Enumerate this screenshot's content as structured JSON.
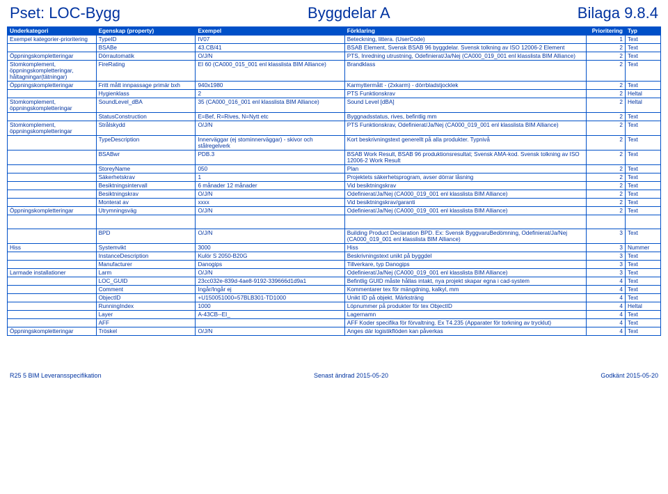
{
  "title": {
    "left": "Pset: LOC-Bygg",
    "center": "Byggdelar A",
    "right": "Bilaga 9.8.4"
  },
  "headers": [
    "Underkategori",
    "Egenskap (property)",
    "Exempel",
    "Förklaring",
    "Prioritering",
    "Typ"
  ],
  "rows": [
    [
      "Exempel kategorier-prioritering",
      "TypeID",
      "IV07",
      "Beteckning, littera. (UserCode)",
      "1",
      "Text"
    ],
    [
      "",
      "BSABe",
      "43.CB/41",
      "BSAB Element, Svensk BSAB 96 byggdelar. Svensk tolkning av ISO 12006-2 Element",
      "2",
      "Text"
    ],
    [
      "Öppningskompletteringar",
      "Dörrautomatik",
      "O/J/N",
      "PTS, Inredning utrustning, Odefinierat/Ja/Nej (CA000_019_001 enl klasslista BIM Alliance)",
      "2",
      "Text"
    ],
    [
      "Stomkomplement, öppningskompletteringar, håltagningar(tätningar)",
      "FireRating",
      "EI 60 (CA000_015_001 enl klasslista BIM Alliance)",
      "Brandklass",
      "2",
      "Text"
    ],
    [
      "Öppningskompletteringar",
      "Fritt mått innpassage primär bxh",
      "940x1980",
      "Karmyttermått - (2xkarm) - dörrbladstjocklek",
      "2",
      "Text"
    ],
    [
      "",
      "Hygienklass",
      "2",
      "PTS Funktionskrav",
      "2",
      "Heltal"
    ],
    [
      "Stomkomplement, öppningskompletteringar",
      "SoundLevel_dBA",
      "35 (CA000_016_001 enl klasslista BIM Alliance)",
      "Sound Level [dBA]",
      "2",
      "Heltal"
    ],
    [
      "",
      "StatusConstruction",
      "E=Bef, R=Rives, N=Nytt etc",
      "Byggnadsstatus, rives, befintlig mm",
      "2",
      "Text"
    ],
    [
      "Stomkomplement, öppningskompletteringar",
      "Strålskydd",
      "O/J/N",
      "PTS Funktionskrav, Odefinierat/Ja/Nej (CA000_019_001 enl klasslista BIM Alliance)",
      "2",
      "Text"
    ],
    [
      "",
      "TypeDescription",
      "Innerväggar (ej stominnerväggar) - skivor och stålregelverk",
      "Kort beskrivningstext generellt på alla produkter. Typnivå",
      "2",
      "Text"
    ],
    [
      "",
      "BSABwr",
      "PDB.3",
      "BSAB Work Result, BSAB 96 produktionsresultat; Svensk AMA-kod. Svensk tolkning av ISO 12006-2 Work Result",
      "2",
      "Text"
    ],
    [
      "",
      "StoreyName",
      "050",
      "Plan",
      "2",
      "Text"
    ],
    [
      "",
      "Säkerhetskrav",
      "1",
      "Projektets säkerhetsprogram, avser dörrar låsning",
      "2",
      "Text"
    ],
    [
      "",
      "Besiktningsintervall",
      "6 månader 12 månader",
      "Vid besiktningskrav",
      "2",
      "Text"
    ],
    [
      "",
      "Besiktningskrav",
      "O/J/N",
      "Odefinierat/Ja/Nej (CA000_019_001 enl klasslista BIM Alliance)",
      "2",
      "Text"
    ],
    [
      "",
      "Monterat av",
      "xxxx",
      "Vid besiktningskrav/garanti",
      "2",
      "Text"
    ],
    [
      "Öppningskompletteringar",
      "Utrymningsväg",
      "O/J/N",
      "Odefinierat/Ja/Nej (CA000_019_001 enl klasslista BIM Alliance)",
      "2",
      "Text"
    ],
    [
      "SPACER"
    ],
    [
      "",
      "BPD",
      "O/J/N",
      "Building Product Declaration BPD. Ex: Svensk ByggvaruBedömning, Odefinierat/Ja/Nej (CA000_019_001 enl klasslista BIM Alliance)",
      "3",
      "Text"
    ],
    [
      "Hiss",
      "Systemvikt",
      "3000",
      "Hiss",
      "3",
      "Nummer"
    ],
    [
      "",
      "InstanceDescription",
      "Kulör S 2050-B20G",
      "Beskrivningstext unikt på byggdel",
      "3",
      "Text"
    ],
    [
      "",
      "Manufacturer",
      "Danogips",
      "Tillverkare, typ Danogips",
      "3",
      "Text"
    ],
    [
      "Larmade installationer",
      "Larm",
      "O/J/N",
      "Odefinierat/Ja/Nej (CA000_019_001 enl klasslista BIM Alliance)",
      "3",
      "Text"
    ],
    [
      "",
      "LOC_GUID",
      "23cc032e-839d-4ae8-9192-339666d1d9a1",
      "Befintlig GUID måste hållas intakt, nya projekt skapar egna i cad-system",
      "4",
      "Text"
    ],
    [
      "",
      "Comment",
      "Ingår/Ingår ej",
      "Kommentarer tex för mängdning, kalkyl, mm",
      "4",
      "Text"
    ],
    [
      "",
      "ObjectID",
      "+U150051000=57BLB301-TD1000",
      "Unikt ID på objekt. Märksträng",
      "4",
      "Text"
    ],
    [
      "",
      "RunningIndex",
      "1000",
      "Löpnummer på produkter för tex ObjectID",
      "4",
      "Heltal"
    ],
    [
      "",
      "Layer",
      "A-43CB--EI_",
      "Lagernamn",
      "4",
      "Text"
    ],
    [
      "",
      "AFF",
      "",
      "AFF Koder specifika för förvaltning. Ex T4.235 (Apparater för torkning av trycklut)",
      "4",
      "Text"
    ],
    [
      "Öppningskompletteringar",
      "Tröskel",
      "O/J/N",
      "Anges där logistikflöden kan påverkas",
      "4",
      "Text"
    ]
  ],
  "footer": {
    "left": "R25 5 BIM Leveransspecifikation",
    "center": "Senast ändrad 2015-05-20",
    "right": "Godkänt 2015-05-20"
  },
  "colors": {
    "brand": "#0033a0",
    "header_bg": "#0050c8",
    "header_fg": "#ffffff",
    "border": "#0050c8",
    "bg": "#ffffff"
  }
}
